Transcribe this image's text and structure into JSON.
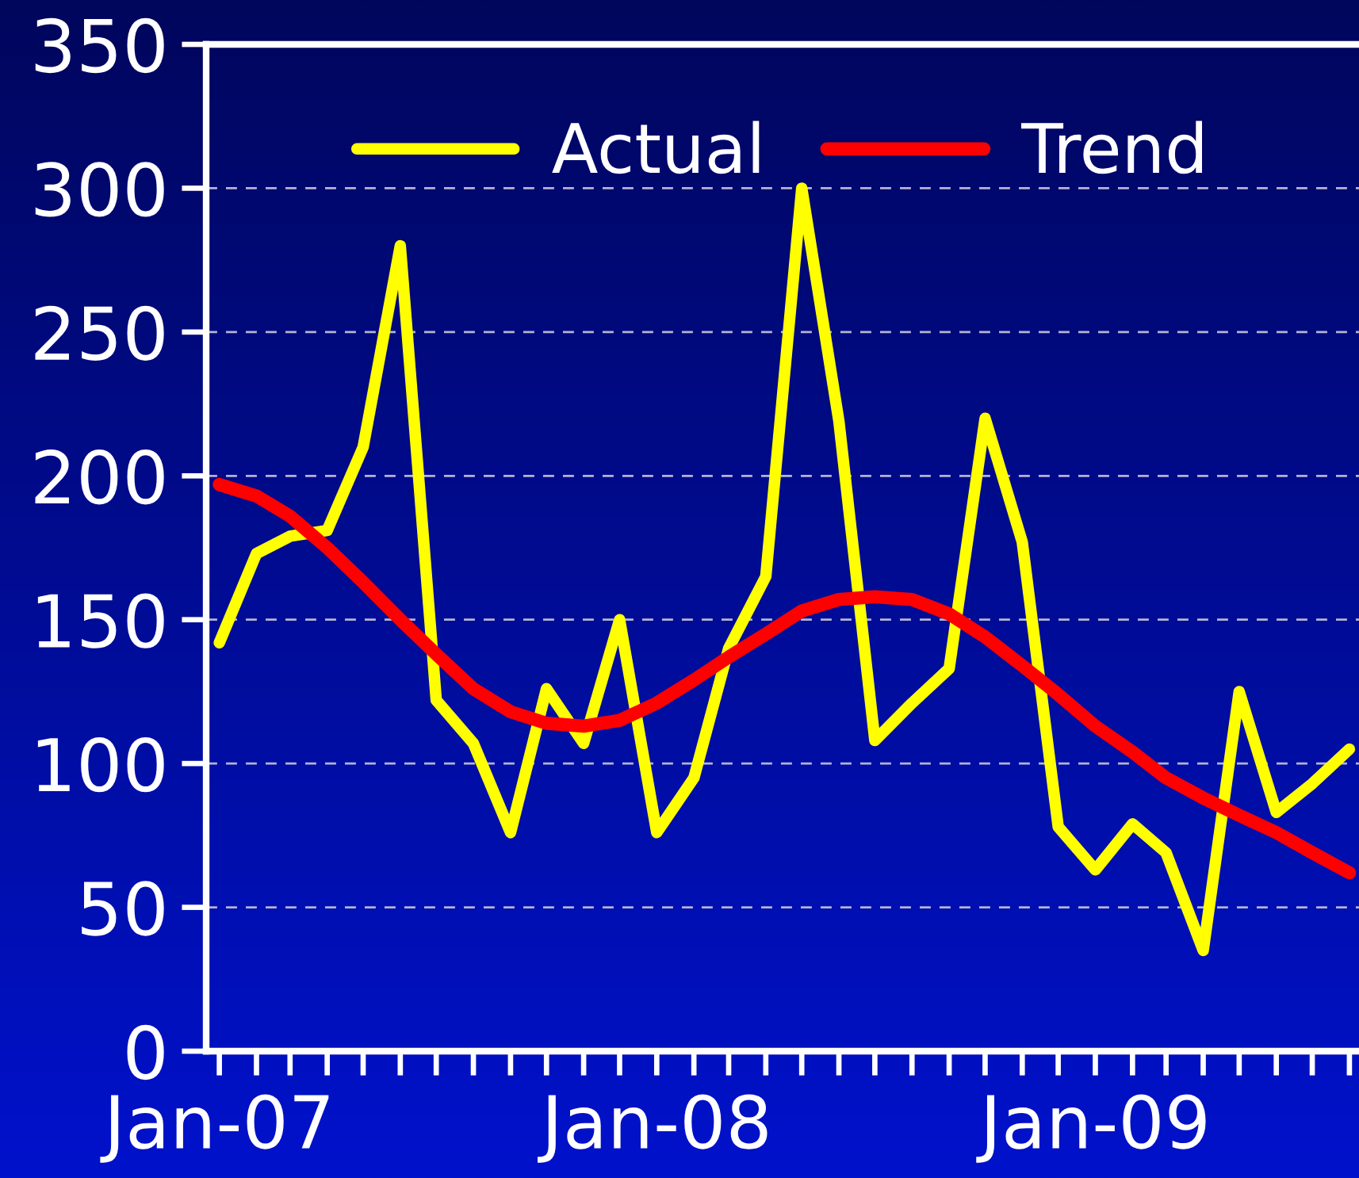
{
  "chart_data": {
    "type": "line",
    "x": [
      "2007-01",
      "2007-02",
      "2007-03",
      "2007-04",
      "2007-05",
      "2007-06",
      "2007-07",
      "2007-08",
      "2007-09",
      "2007-10",
      "2007-11",
      "2007-12",
      "2008-01",
      "2008-02",
      "2008-03",
      "2008-04",
      "2008-05",
      "2008-06",
      "2008-07",
      "2008-08",
      "2008-09",
      "2008-10",
      "2008-11",
      "2008-12",
      "2009-01",
      "2009-02",
      "2009-03",
      "2009-04",
      "2009-05",
      "2009-06",
      "2009-07",
      "2009-08"
    ],
    "series": [
      {
        "name": "Actual",
        "color": "#ffff00",
        "values": [
          142,
          173,
          179,
          181,
          210,
          280,
          122,
          107,
          76,
          126,
          107,
          150,
          76,
          95,
          140,
          165,
          300,
          219,
          108,
          121,
          133,
          220,
          177,
          78,
          63,
          79,
          69,
          35,
          125,
          83,
          93,
          105
        ]
      },
      {
        "name": "Trend",
        "color": "#ff0000",
        "values": [
          197,
          193,
          186,
          175,
          163,
          150,
          138,
          126,
          118,
          114,
          113,
          115,
          121,
          129,
          137,
          145,
          153,
          157,
          158,
          157,
          152,
          144,
          134,
          124,
          113,
          104,
          95,
          88,
          82,
          76,
          69,
          62
        ]
      }
    ],
    "xlim": [
      "2006-12-21",
      "2009-08-09"
    ],
    "xticks": [
      {
        "value": "2007-01",
        "label": "Jan-07"
      },
      {
        "value": "2007-02",
        "label": null
      },
      {
        "value": "2007-03",
        "label": null
      },
      {
        "value": "2007-04",
        "label": null
      },
      {
        "value": "2007-05",
        "label": null
      },
      {
        "value": "2007-06",
        "label": null
      },
      {
        "value": "2007-07",
        "label": null
      },
      {
        "value": "2007-08",
        "label": null
      },
      {
        "value": "2007-09",
        "label": null
      },
      {
        "value": "2007-10",
        "label": null
      },
      {
        "value": "2007-11",
        "label": null
      },
      {
        "value": "2007-12",
        "label": null
      },
      {
        "value": "2008-01",
        "label": "Jan-08"
      },
      {
        "value": "2008-02",
        "label": null
      },
      {
        "value": "2008-03",
        "label": null
      },
      {
        "value": "2008-04",
        "label": null
      },
      {
        "value": "2008-05",
        "label": null
      },
      {
        "value": "2008-06",
        "label": null
      },
      {
        "value": "2008-07",
        "label": null
      },
      {
        "value": "2008-08",
        "label": null
      },
      {
        "value": "2008-09",
        "label": null
      },
      {
        "value": "2008-10",
        "label": null
      },
      {
        "value": "2008-11",
        "label": null
      },
      {
        "value": "2008-12",
        "label": null
      },
      {
        "value": "2009-01",
        "label": "Jan-09"
      },
      {
        "value": "2009-02",
        "label": null
      },
      {
        "value": "2009-03",
        "label": null
      },
      {
        "value": "2009-04",
        "label": null
      },
      {
        "value": "2009-05",
        "label": null
      },
      {
        "value": "2009-06",
        "label": null
      },
      {
        "value": "2009-07",
        "label": null
      },
      {
        "value": "2009-08",
        "label": null
      }
    ],
    "ylim": [
      0,
      350
    ],
    "yticks": [
      0,
      50,
      100,
      150,
      200,
      250,
      300,
      350
    ],
    "grid": "y",
    "legend": "top",
    "marker": "none",
    "line_style": "solid"
  }
}
